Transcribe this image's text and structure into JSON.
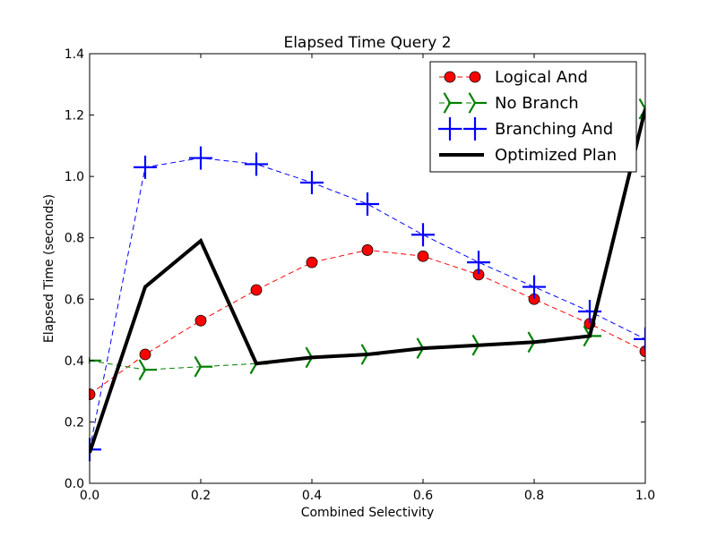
{
  "chart_data": {
    "type": "line",
    "title": "Elapsed Time Query 2",
    "xlabel": "Combined Selectivity",
    "ylabel": "Elapsed Time (seconds)",
    "xlim": [
      0.0,
      1.0
    ],
    "ylim": [
      0.0,
      1.4
    ],
    "xticks": [
      "0.0",
      "0.2",
      "0.4",
      "0.6",
      "0.8",
      "1.0"
    ],
    "yticks": [
      "0.0",
      "0.2",
      "0.4",
      "0.6",
      "0.8",
      "1.0",
      "1.2",
      "1.4"
    ],
    "x": [
      0.0,
      0.1,
      0.2,
      0.3,
      0.4,
      0.5,
      0.6,
      0.7,
      0.8,
      0.9,
      1.0
    ],
    "grid": false,
    "legend_position": "top-right",
    "series": [
      {
        "name": "Logical And",
        "color": "#ff0000",
        "marker": "circle",
        "line_style": "dashed",
        "values": [
          0.29,
          0.42,
          0.53,
          0.63,
          0.72,
          0.76,
          0.74,
          0.68,
          0.6,
          0.52,
          0.43
        ]
      },
      {
        "name": "No Branch",
        "color": "#008000",
        "marker": "tri-right",
        "line_style": "dashed",
        "values": [
          0.4,
          0.37,
          0.38,
          0.39,
          0.41,
          0.42,
          0.44,
          0.45,
          0.46,
          0.48,
          1.22
        ]
      },
      {
        "name": "Branching And",
        "color": "#0000ff",
        "marker": "plus",
        "line_style": "dashed",
        "values": [
          0.11,
          1.03,
          1.06,
          1.04,
          0.98,
          0.91,
          0.81,
          0.72,
          0.64,
          0.56,
          0.47
        ]
      },
      {
        "name": "Optimized Plan",
        "color": "#000000",
        "marker": "none",
        "line_style": "solid",
        "values": [
          0.1,
          0.64,
          0.79,
          0.39,
          0.41,
          0.42,
          0.44,
          0.45,
          0.46,
          0.48,
          1.22
        ]
      }
    ]
  }
}
